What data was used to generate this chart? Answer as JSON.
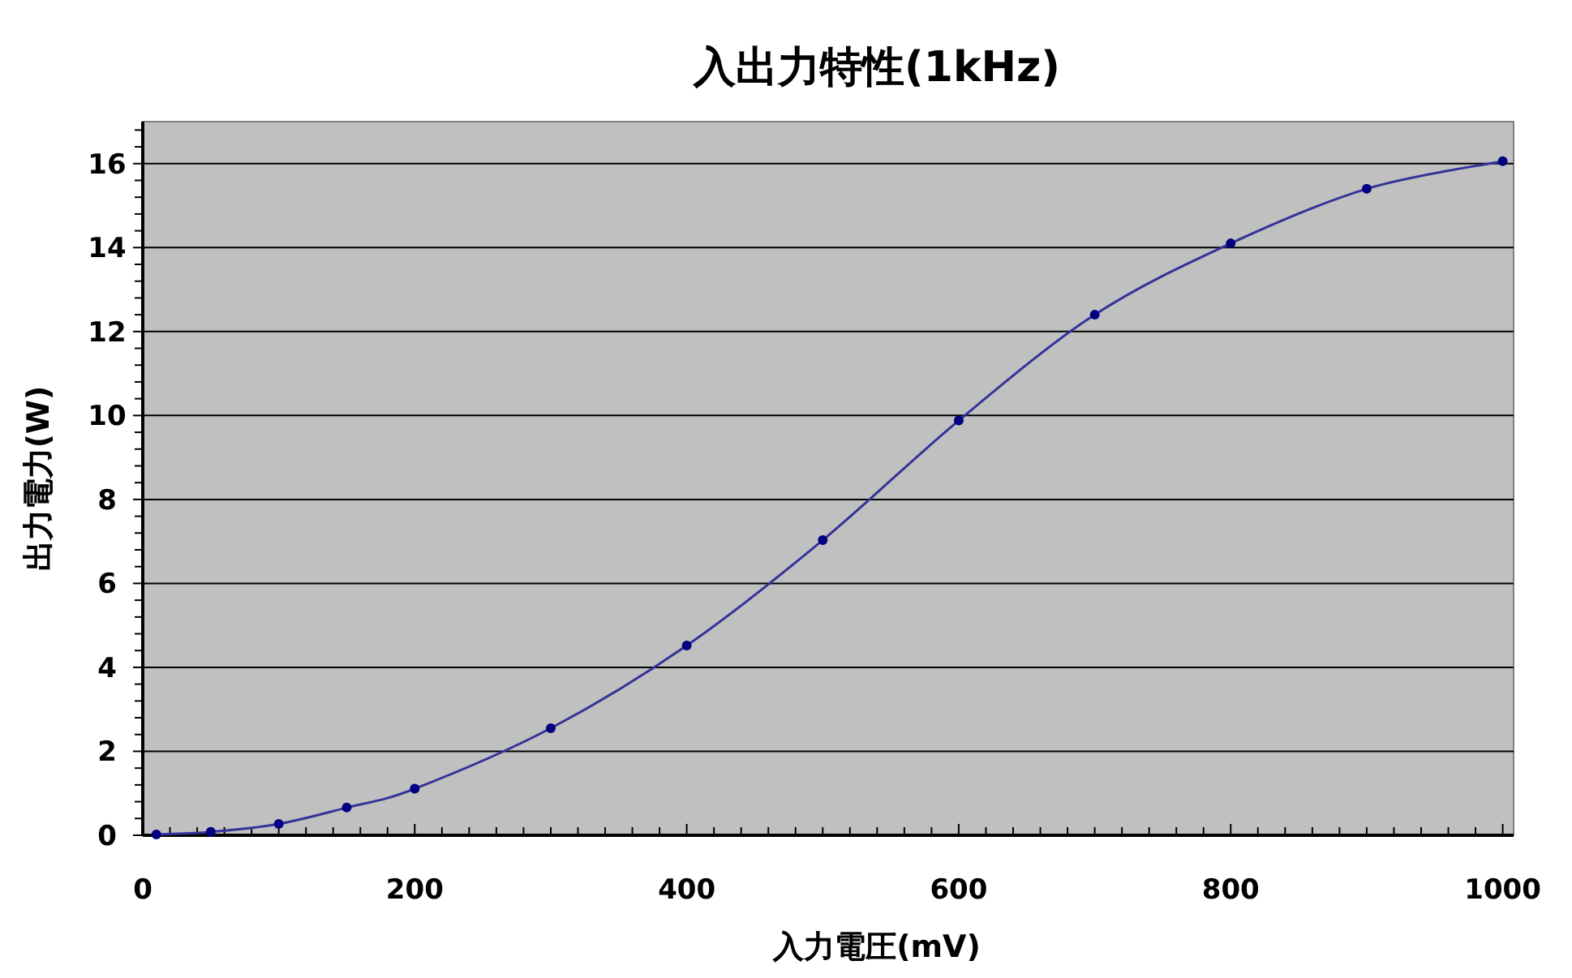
{
  "chart_data": {
    "type": "line",
    "title": "入出力特性(1kHz)",
    "xlabel": "入力電圧(mV)",
    "ylabel": "出力電力(W)",
    "x": [
      10,
      50,
      100,
      150,
      200,
      300,
      400,
      500,
      600,
      700,
      800,
      900,
      1000
    ],
    "series": [
      {
        "color": "#333399",
        "values": [
          0.02,
          0.08,
          0.27,
          0.66,
          1.11,
          2.55,
          4.52,
          7.03,
          9.88,
          12.4,
          14.1,
          15.4,
          16.06
        ]
      }
    ],
    "xlim": [
      0,
      1008
    ],
    "ylim": [
      0,
      17
    ],
    "xticks": [
      0,
      {
        "value": 20,
        "label": null
      },
      {
        "value": 40,
        "label": null
      },
      {
        "value": 60,
        "label": null
      },
      {
        "value": 80,
        "label": null
      },
      {
        "value": 100,
        "label": null
      },
      {
        "value": 120,
        "label": null
      },
      {
        "value": 140,
        "label": null
      },
      {
        "value": 160,
        "label": null
      },
      {
        "value": 180,
        "label": null
      },
      200,
      {
        "value": 220,
        "label": null
      },
      {
        "value": 240,
        "label": null
      },
      {
        "value": 260,
        "label": null
      },
      {
        "value": 280,
        "label": null
      },
      {
        "value": 300,
        "label": null
      },
      {
        "value": 320,
        "label": null
      },
      {
        "value": 340,
        "label": null
      },
      {
        "value": 360,
        "label": null
      },
      {
        "value": 380,
        "label": null
      },
      400,
      {
        "value": 420,
        "label": null
      },
      {
        "value": 440,
        "label": null
      },
      {
        "value": 460,
        "label": null
      },
      {
        "value": 480,
        "label": null
      },
      {
        "value": 500,
        "label": null
      },
      {
        "value": 520,
        "label": null
      },
      {
        "value": 540,
        "label": null
      },
      {
        "value": 560,
        "label": null
      },
      {
        "value": 580,
        "label": null
      },
      600,
      {
        "value": 620,
        "label": null
      },
      {
        "value": 640,
        "label": null
      },
      {
        "value": 660,
        "label": null
      },
      {
        "value": 680,
        "label": null
      },
      {
        "value": 700,
        "label": null
      },
      {
        "value": 720,
        "label": null
      },
      {
        "value": 740,
        "label": null
      },
      {
        "value": 760,
        "label": null
      },
      {
        "value": 780,
        "label": null
      },
      800,
      {
        "value": 820,
        "label": null
      },
      {
        "value": 840,
        "label": null
      },
      {
        "value": 860,
        "label": null
      },
      {
        "value": 880,
        "label": null
      },
      {
        "value": 900,
        "label": null
      },
      {
        "value": 920,
        "label": null
      },
      {
        "value": 940,
        "label": null
      },
      {
        "value": 960,
        "label": null
      },
      {
        "value": 980,
        "label": null
      },
      1000
    ],
    "yticks": [
      0,
      {
        "value": 0.4,
        "label": null
      },
      {
        "value": 0.8,
        "label": null
      },
      {
        "value": 1.2,
        "label": null
      },
      {
        "value": 1.6,
        "label": null
      },
      2,
      {
        "value": 2.4,
        "label": null
      },
      {
        "value": 2.8,
        "label": null
      },
      {
        "value": 3.2,
        "label": null
      },
      {
        "value": 3.6,
        "label": null
      },
      4,
      {
        "value": 4.4,
        "label": null
      },
      {
        "value": 4.8,
        "label": null
      },
      {
        "value": 5.2,
        "label": null
      },
      {
        "value": 5.6,
        "label": null
      },
      6,
      {
        "value": 6.4,
        "label": null
      },
      {
        "value": 6.8,
        "label": null
      },
      {
        "value": 7.2,
        "label": null
      },
      {
        "value": 7.6,
        "label": null
      },
      8,
      {
        "value": 8.4,
        "label": null
      },
      {
        "value": 8.8,
        "label": null
      },
      {
        "value": 9.2,
        "label": null
      },
      {
        "value": 9.6,
        "label": null
      },
      10,
      {
        "value": 10.4,
        "label": null
      },
      {
        "value": 10.8,
        "label": null
      },
      {
        "value": 11.2,
        "label": null
      },
      {
        "value": 11.6,
        "label": null
      },
      12,
      {
        "value": 12.4,
        "label": null
      },
      {
        "value": 12.8,
        "label": null
      },
      {
        "value": 13.2,
        "label": null
      },
      {
        "value": 13.6,
        "label": null
      },
      14,
      {
        "value": 14.4,
        "label": null
      },
      {
        "value": 14.8,
        "label": null
      },
      {
        "value": 15.2,
        "label": null
      },
      {
        "value": 15.6,
        "label": null
      },
      16,
      {
        "value": 16.4,
        "label": null
      },
      {
        "value": 16.8,
        "label": null
      }
    ],
    "grid": "y",
    "marker": "circle",
    "line_style": "solid"
  }
}
